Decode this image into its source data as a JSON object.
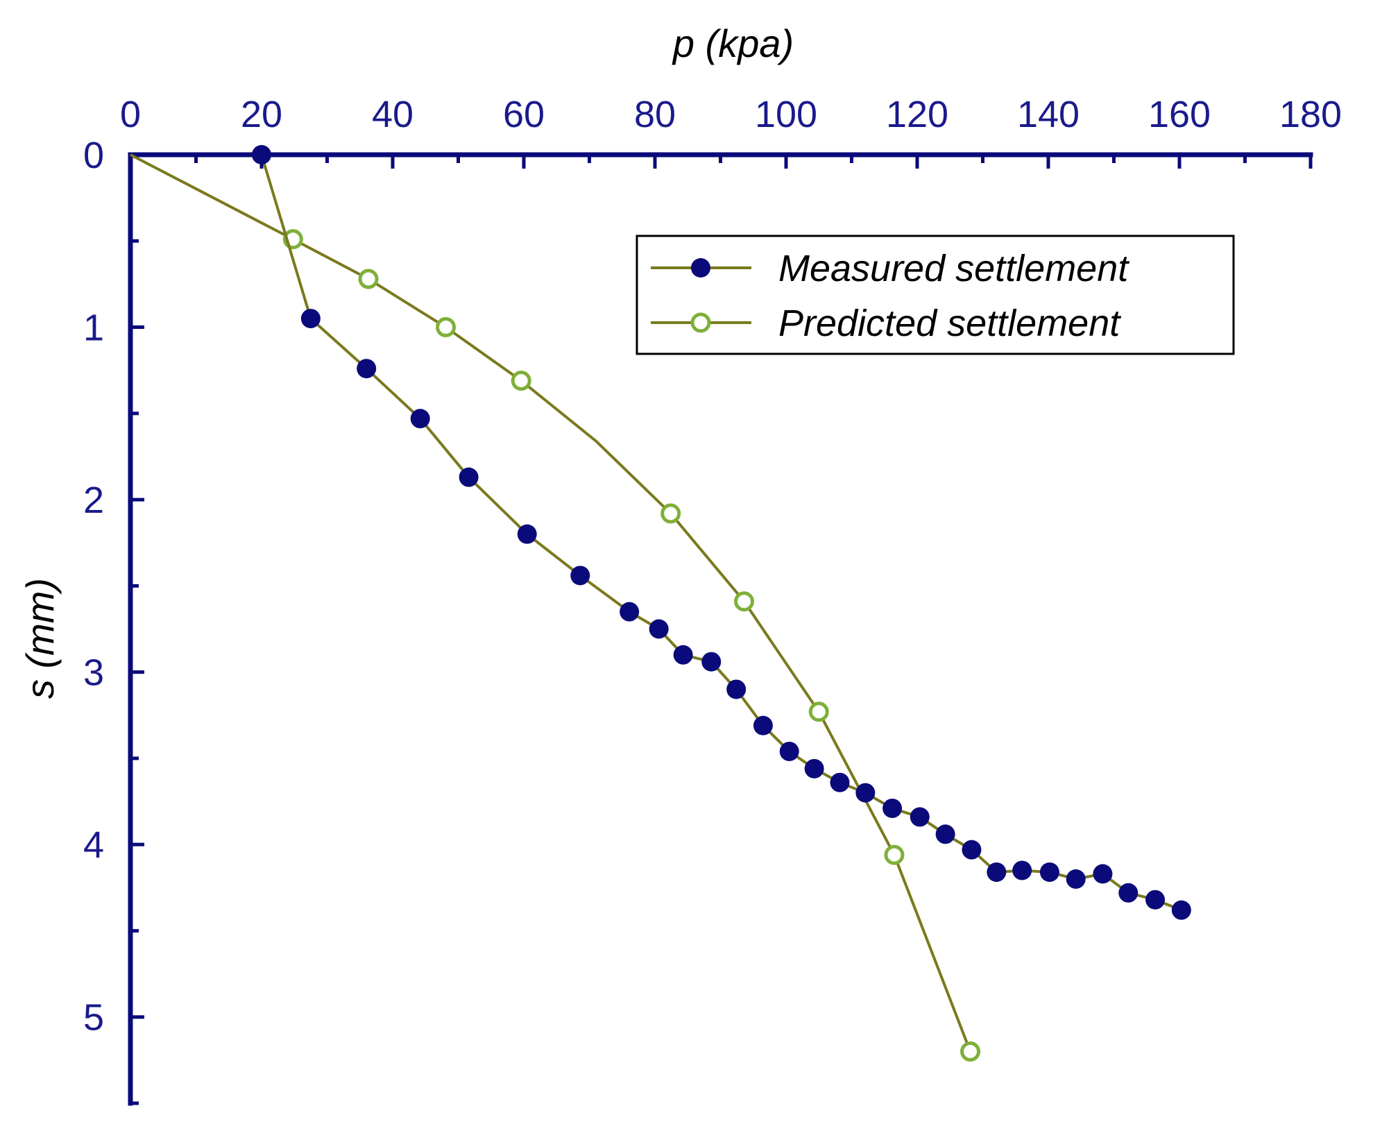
{
  "chart_data": {
    "type": "line",
    "title": "",
    "xlabel": "p (kpa)",
    "ylabel": "s (mm)",
    "xlim": [
      0,
      180
    ],
    "ylim": [
      0,
      5.5
    ],
    "y_inverted": true,
    "x_axis_position": "top",
    "x_ticks": [
      "0",
      "20",
      "40",
      "60",
      "80",
      "100",
      "120",
      "140",
      "160",
      "180"
    ],
    "y_ticks": [
      "0",
      "1",
      "2",
      "3",
      "4",
      "5"
    ],
    "grid": false,
    "legend_position": "top-right",
    "series": [
      {
        "name": "Measured settlement",
        "marker": "filled-circle",
        "marker_color": "#0a0a7a",
        "line_color": "#7a7a1e",
        "x": [
          20,
          27.5,
          36,
          44.2,
          51.6,
          60.5,
          68.6,
          76.1,
          80.6,
          84.3,
          88.6,
          92.4,
          96.5,
          100.5,
          104.3,
          108.2,
          112.1,
          116.2,
          120.4,
          124.3,
          128.3,
          132.1,
          136,
          140.2,
          144.2,
          148.3,
          152.2,
          156.3,
          160.3
        ],
        "y": [
          0,
          0.95,
          1.24,
          1.53,
          1.87,
          2.2,
          2.44,
          2.65,
          2.75,
          2.9,
          2.94,
          3.1,
          3.31,
          3.46,
          3.56,
          3.64,
          3.7,
          3.79,
          3.84,
          3.94,
          4.03,
          4.16,
          4.15,
          4.16,
          4.2,
          4.17,
          4.28,
          4.32,
          4.38
        ]
      },
      {
        "name": "Predicted settlement",
        "marker": "open-circle",
        "marker_color": "#7fb03a",
        "line_color": "#7a7a1e",
        "x": [
          0,
          24.8,
          36.3,
          48.1,
          59.6,
          71,
          82.4,
          93.6,
          105,
          116.5,
          128.1
        ],
        "y": [
          0,
          0.49,
          0.72,
          1,
          1.31,
          1.66,
          2.08,
          2.59,
          3.23,
          4.06,
          5.2
        ],
        "marked_points": [
          false,
          true,
          true,
          true,
          true,
          false,
          true,
          true,
          true,
          true,
          true
        ]
      }
    ]
  }
}
